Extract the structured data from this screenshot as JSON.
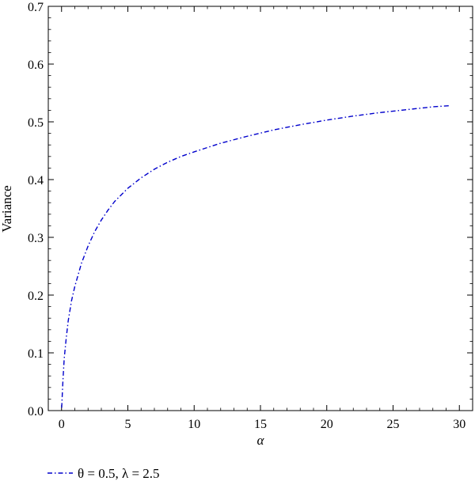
{
  "chart_data": {
    "type": "line",
    "xlabel": "α",
    "ylabel": "Variance",
    "xlim": [
      -1,
      31
    ],
    "ylim": [
      0,
      0.7
    ],
    "xticks": [
      0,
      5,
      10,
      15,
      20,
      25,
      30
    ],
    "yticks": [
      0.0,
      0.1,
      0.2,
      0.3,
      0.4,
      0.5,
      0.6,
      0.7
    ],
    "grid": false,
    "legend_position": "bottom-left",
    "series": [
      {
        "name": "θ = 0.5, λ = 2.5",
        "color": "#0000cc",
        "line_style": "dash-dot",
        "x": [
          0.01,
          0.1,
          0.2,
          0.35,
          0.5,
          0.75,
          1,
          1.5,
          2,
          2.5,
          3,
          3.5,
          4,
          5,
          6,
          7,
          8,
          9,
          10,
          12,
          14,
          16,
          18,
          20,
          22,
          24,
          26,
          28,
          29.3
        ],
        "y": [
          0.005,
          0.05,
          0.09,
          0.125,
          0.155,
          0.19,
          0.215,
          0.255,
          0.285,
          0.31,
          0.33,
          0.347,
          0.362,
          0.385,
          0.403,
          0.418,
          0.43,
          0.44,
          0.448,
          0.463,
          0.475,
          0.486,
          0.495,
          0.503,
          0.51,
          0.516,
          0.521,
          0.526,
          0.528
        ]
      }
    ]
  }
}
